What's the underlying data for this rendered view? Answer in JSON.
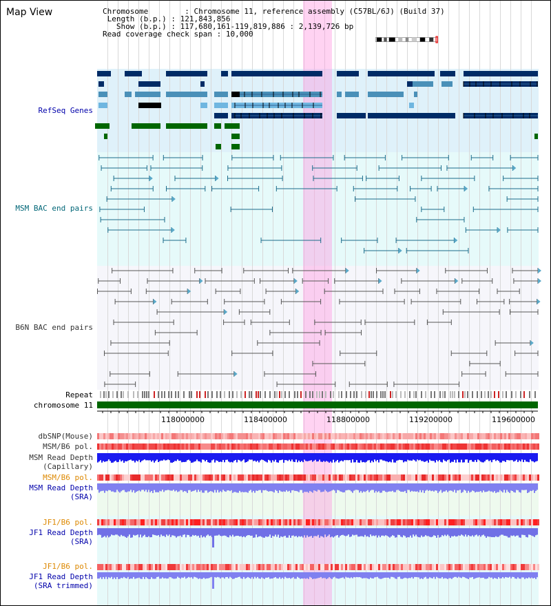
{
  "title": "Map View",
  "header": {
    "chromosome_key": "Chromosome",
    "chromosome_val": "Chromosome 11, reference assembly (C57BL/6J) (Build 37)",
    "length_key": "Length (b.p.)",
    "length_val": "121,843,856",
    "show_key": "Show (b.p.)",
    "show_val": "117,680,161-119,819,886 : 2,139,726 bp",
    "coverage_key": "Read coverage check span",
    "coverage_val": "10,000"
  },
  "tracks": {
    "refseq": "RefSeq Genes",
    "msm_bac": "MSM BAC end pairs",
    "b6n_bac": "B6N BAC end pairs",
    "repeat": "Repeat",
    "chromosome": "chromosome 11",
    "dbsnp": "dbSNP(Mouse)",
    "msm_b6_pol_1": "MSM/B6 pol.",
    "msm_depth_cap": "MSM Read Depth\n(Capillary)",
    "msm_b6_pol_2": "MSM/B6 pol.",
    "msm_depth_sra": "MSM Read Depth\n(SRA)",
    "jf1_b6_pol_1": "JF1/B6 pol.",
    "jf1_depth_sra": "JF1 Read Depth\n(SRA)",
    "jf1_b6_pol_2": "JF1/B6 pol.",
    "jf1_depth_trim": "JF1 Read Depth\n(SRA trimmed)"
  },
  "axis_ticks": [
    "118000000",
    "118400000",
    "118800000",
    "119200000",
    "119600000"
  ],
  "colors": {
    "gene_dark": "#002b66",
    "gene_mid": "#4a90b8",
    "gene_light": "#6fb6e0",
    "gene_green": "#006600",
    "refseq_bg": "#dff1fa",
    "msm_bg": "#e6fafa",
    "b6n_bg": "#f6f6fb",
    "highlight": "#f7c8ee",
    "label_blue": "#0000aa",
    "label_teal": "#006677",
    "label_orange": "#dd8800"
  }
}
